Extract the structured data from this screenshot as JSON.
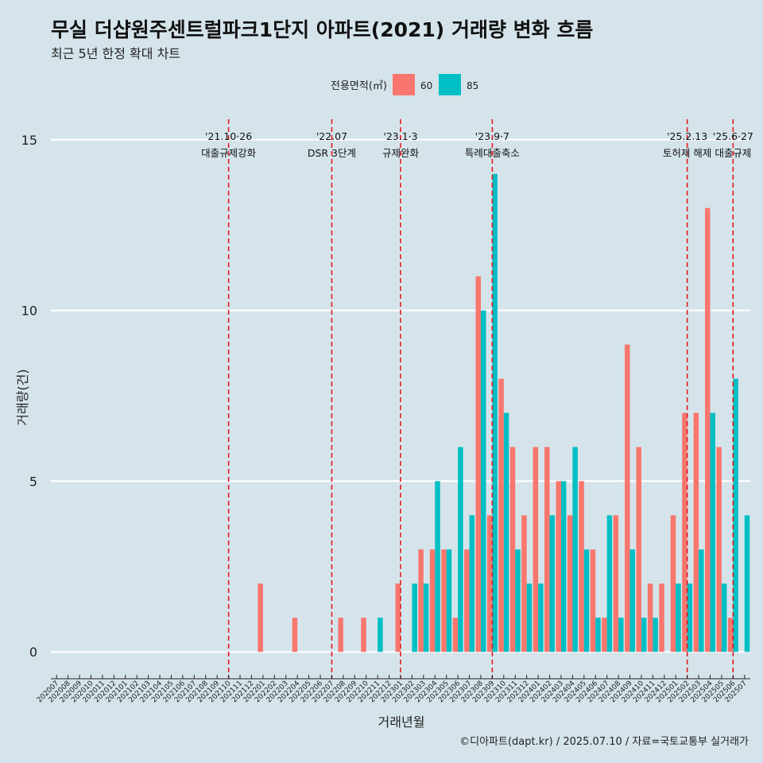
{
  "header": {
    "title": "무실 더샵원주센트럴파크1단지 아파트(2021) 거래량 변화 흐름",
    "subtitle": "최근 5년 한정 확대 차트"
  },
  "caption": "©디아파트(dapt.kr) / 2025.07.10 / 자료=국토교통부 실거래가",
  "colors": {
    "background": "#d5e4eb",
    "series60": "#f8766d",
    "series85": "#00bfc4",
    "grid": "#ffffff",
    "eventLine": "#e41a1c"
  },
  "chart_data": {
    "type": "bar",
    "title": "무실 더샵원주센트럴파크1단지 아파트(2021) 거래량 변화 흐름",
    "xlabel": "거래년월",
    "ylabel": "거래량(건)",
    "ylim": [
      -0.6,
      15.6
    ],
    "yticks": [
      0,
      5,
      10,
      15
    ],
    "legend": {
      "title": "전용면적(㎡)",
      "position": "top"
    },
    "categories": [
      "202007",
      "202008",
      "202009",
      "202010",
      "202011",
      "202012",
      "202101",
      "202102",
      "202103",
      "202104",
      "202105",
      "202106",
      "202107",
      "202108",
      "202109",
      "202110",
      "202111",
      "202112",
      "202201",
      "202202",
      "202203",
      "202204",
      "202205",
      "202206",
      "202207",
      "202208",
      "202209",
      "202210",
      "202211",
      "202212",
      "202301",
      "202302",
      "202303",
      "202304",
      "202305",
      "202306",
      "202307",
      "202308",
      "202309",
      "202310",
      "202311",
      "202312",
      "202401",
      "202402",
      "202403",
      "202404",
      "202405",
      "202406",
      "202407",
      "202408",
      "202409",
      "202410",
      "202411",
      "202412",
      "202501",
      "202502",
      "202503",
      "202504",
      "202505",
      "202506",
      "202507"
    ],
    "series": [
      {
        "name": "60",
        "color": "#f8766d",
        "values": [
          0,
          0,
          0,
          0,
          0,
          0,
          0,
          0,
          0,
          0,
          0,
          0,
          0,
          0,
          0,
          0,
          0,
          0,
          2,
          0,
          0,
          1,
          0,
          0,
          0,
          1,
          0,
          1,
          0,
          0,
          2,
          0,
          3,
          3,
          3,
          1,
          3,
          11,
          4,
          8,
          6,
          4,
          6,
          6,
          5,
          4,
          5,
          3,
          1,
          4,
          9,
          6,
          2,
          2,
          4,
          7,
          7,
          13,
          6,
          1,
          0
        ]
      },
      {
        "name": "85",
        "color": "#00bfc4",
        "values": [
          0,
          0,
          0,
          0,
          0,
          0,
          0,
          0,
          0,
          0,
          0,
          0,
          0,
          0,
          0,
          0,
          0,
          0,
          0,
          0,
          0,
          0,
          0,
          0,
          0,
          0,
          0,
          0,
          1,
          0,
          0,
          2,
          2,
          5,
          3,
          6,
          4,
          10,
          14,
          7,
          3,
          2,
          2,
          4,
          5,
          6,
          3,
          1,
          4,
          1,
          3,
          1,
          1,
          0,
          2,
          2,
          3,
          7,
          2,
          8,
          4
        ]
      }
    ],
    "events": [
      {
        "date": "'21.10·26",
        "label": "대출규제강화",
        "month": "202110",
        "pos": 0.0
      },
      {
        "date": "'22.07",
        "label": "DSR 3단계",
        "month": "202207",
        "pos": 0.0
      },
      {
        "date": "'23.1·3",
        "label": "규제완화",
        "month": "202301",
        "pos": 0.0
      },
      {
        "date": "'23.9·7",
        "label": "특례대출축소",
        "month": "202309",
        "pos": 0.0
      },
      {
        "date": "'25.2.13",
        "label": "토허제 해제",
        "month": "202502",
        "pos": 0.0
      },
      {
        "date": "'25.6·27",
        "label": "대출규제",
        "month": "202506",
        "pos": 0.0
      }
    ]
  }
}
